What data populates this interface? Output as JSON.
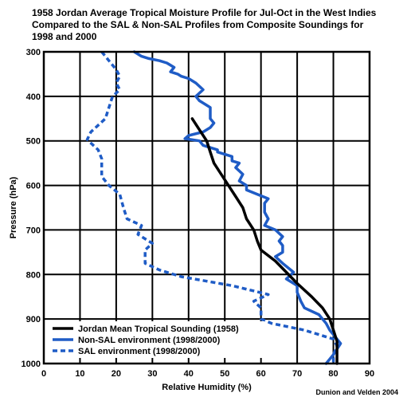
{
  "chart_data": {
    "type": "line",
    "title": [
      "1958 Jordan Average Tropical Moisture Profile for Jul-Oct in the West Indies",
      "Compared to the SAL & Non-SAL Profiles from Composite Soundings for",
      "1998 and 2000"
    ],
    "xlabel": "Relative Humidity (%)",
    "ylabel": "Pressure (hPa)",
    "xlim": [
      0,
      90
    ],
    "ylim": [
      300,
      1000
    ],
    "y_inverted": true,
    "x_ticks": [
      0,
      10,
      20,
      30,
      40,
      50,
      60,
      70,
      80,
      90
    ],
    "y_ticks": [
      300,
      400,
      500,
      600,
      700,
      800,
      900,
      1000
    ],
    "grid": true,
    "legend_position": "bottom-left",
    "credit": "Dunion and Velden 2004",
    "series": [
      {
        "name": "Jordan Mean Tropical Sounding (1958)",
        "color": "#000000",
        "style": "solid",
        "points": [
          [
            41,
            450
          ],
          [
            43,
            475
          ],
          [
            45,
            500
          ],
          [
            46,
            525
          ],
          [
            47,
            550
          ],
          [
            49,
            575
          ],
          [
            51,
            600
          ],
          [
            53,
            625
          ],
          [
            55,
            650
          ],
          [
            56,
            675
          ],
          [
            58,
            700
          ],
          [
            59,
            725
          ],
          [
            60,
            745
          ],
          [
            64,
            770
          ],
          [
            67,
            795
          ],
          [
            70,
            820
          ],
          [
            74,
            850
          ],
          [
            77,
            875
          ],
          [
            79,
            900
          ],
          [
            80,
            925
          ],
          [
            81,
            950
          ],
          [
            81,
            975
          ],
          [
            81,
            1000
          ]
        ]
      },
      {
        "name": "Non-SAL environment (1998/2000)",
        "color": "#1f5cc6",
        "style": "solid",
        "points": [
          [
            25,
            300
          ],
          [
            27,
            310
          ],
          [
            29,
            315
          ],
          [
            32,
            320
          ],
          [
            34,
            325
          ],
          [
            35,
            330
          ],
          [
            36,
            335
          ],
          [
            35,
            345
          ],
          [
            37,
            350
          ],
          [
            38,
            355
          ],
          [
            40,
            360
          ],
          [
            42,
            370
          ],
          [
            44,
            385
          ],
          [
            42,
            400
          ],
          [
            43,
            410
          ],
          [
            45,
            420
          ],
          [
            46,
            425
          ],
          [
            46,
            450
          ],
          [
            47,
            460
          ],
          [
            46,
            470
          ],
          [
            44,
            480
          ],
          [
            40,
            488
          ],
          [
            39,
            495
          ],
          [
            43,
            500
          ],
          [
            44,
            510
          ],
          [
            48,
            520
          ],
          [
            48,
            525
          ],
          [
            52,
            535
          ],
          [
            52,
            545
          ],
          [
            54,
            550
          ],
          [
            53,
            560
          ],
          [
            55,
            575
          ],
          [
            54,
            590
          ],
          [
            56,
            600
          ],
          [
            56,
            610
          ],
          [
            62,
            630
          ],
          [
            61,
            640
          ],
          [
            61,
            660
          ],
          [
            62,
            675
          ],
          [
            61,
            690
          ],
          [
            64,
            700
          ],
          [
            66,
            715
          ],
          [
            65,
            725
          ],
          [
            66,
            735
          ],
          [
            66,
            750
          ],
          [
            64,
            760
          ],
          [
            66,
            775
          ],
          [
            69,
            795
          ],
          [
            67,
            810
          ],
          [
            70,
            825
          ],
          [
            70,
            840
          ],
          [
            71,
            860
          ],
          [
            72,
            875
          ],
          [
            76,
            890
          ],
          [
            78,
            910
          ],
          [
            79,
            925
          ],
          [
            80,
            935
          ],
          [
            82,
            955
          ],
          [
            80,
            980
          ],
          [
            78,
            1000
          ]
        ]
      },
      {
        "name": "SAL environment (1998/2000)",
        "color": "#1f5cc6",
        "style": "dashed",
        "points": [
          [
            16,
            300
          ],
          [
            18,
            320
          ],
          [
            20,
            340
          ],
          [
            21,
            355
          ],
          [
            20,
            370
          ],
          [
            21,
            385
          ],
          [
            19,
            400
          ],
          [
            18,
            425
          ],
          [
            17,
            450
          ],
          [
            15,
            465
          ],
          [
            13,
            480
          ],
          [
            12,
            497
          ],
          [
            13,
            505
          ],
          [
            15,
            520
          ],
          [
            16,
            540
          ],
          [
            16,
            560
          ],
          [
            16,
            580
          ],
          [
            18,
            600
          ],
          [
            21,
            620
          ],
          [
            22,
            650
          ],
          [
            23,
            675
          ],
          [
            27,
            690
          ],
          [
            26,
            710
          ],
          [
            30,
            730
          ],
          [
            28,
            745
          ],
          [
            28,
            760
          ],
          [
            28,
            775
          ],
          [
            32,
            790
          ],
          [
            38,
            805
          ],
          [
            45,
            815
          ],
          [
            52,
            825
          ],
          [
            62,
            845
          ],
          [
            58,
            860
          ],
          [
            60,
            875
          ],
          [
            60,
            885
          ],
          [
            60,
            900
          ],
          [
            63,
            910
          ],
          [
            72,
            925
          ],
          [
            80,
            945
          ],
          [
            81,
            960
          ],
          [
            80,
            980
          ],
          [
            80,
            1000
          ]
        ]
      }
    ]
  }
}
